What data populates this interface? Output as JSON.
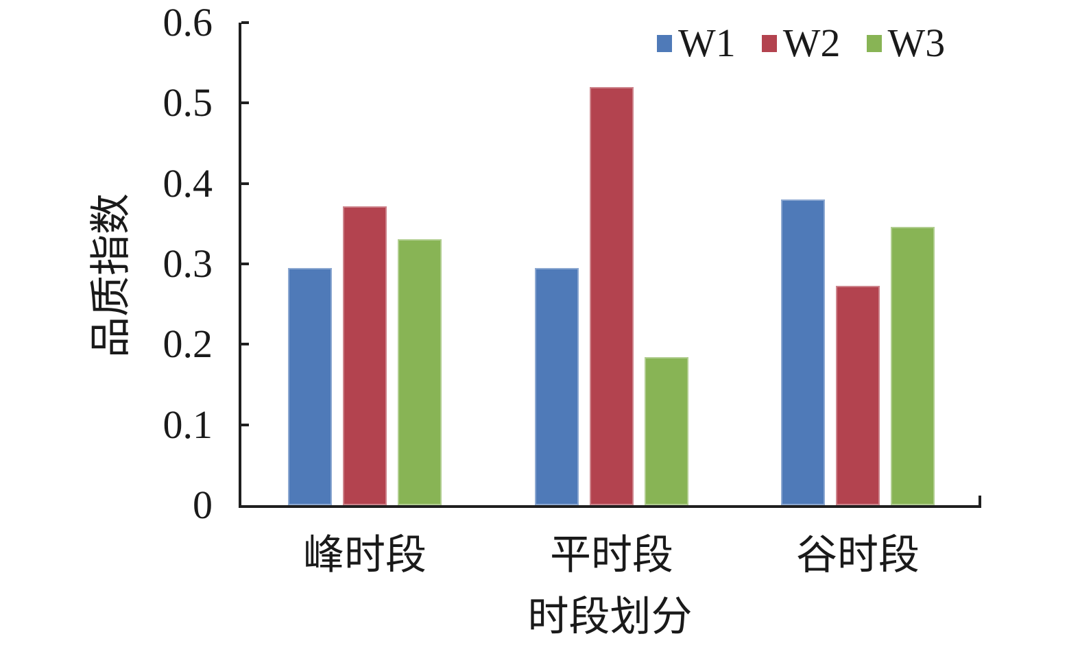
{
  "chart_data": {
    "type": "bar",
    "title": "",
    "xlabel": "时段划分",
    "ylabel": "品质指数",
    "categories": [
      "峰时段",
      "平时段",
      "谷时段"
    ],
    "series": [
      {
        "name": "W1",
        "color": "#4f7ab8",
        "values": [
          0.295,
          0.295,
          0.38
        ]
      },
      {
        "name": "W2",
        "color": "#b3434f",
        "values": [
          0.372,
          0.52,
          0.273
        ]
      },
      {
        "name": "W3",
        "color": "#88b455",
        "values": [
          0.331,
          0.184,
          0.346
        ]
      }
    ],
    "ylim": [
      0,
      0.6
    ],
    "yticks": [
      0,
      0.1,
      0.2,
      0.3,
      0.4,
      0.5,
      0.6
    ],
    "ytick_labels": [
      "0",
      "0.1",
      "0.2",
      "0.3",
      "0.4",
      "0.5",
      "0.6"
    ],
    "legend_position": "top-right",
    "grid": false,
    "axis_color": "#1f1f1f",
    "text_color": "#1a1a1a"
  }
}
